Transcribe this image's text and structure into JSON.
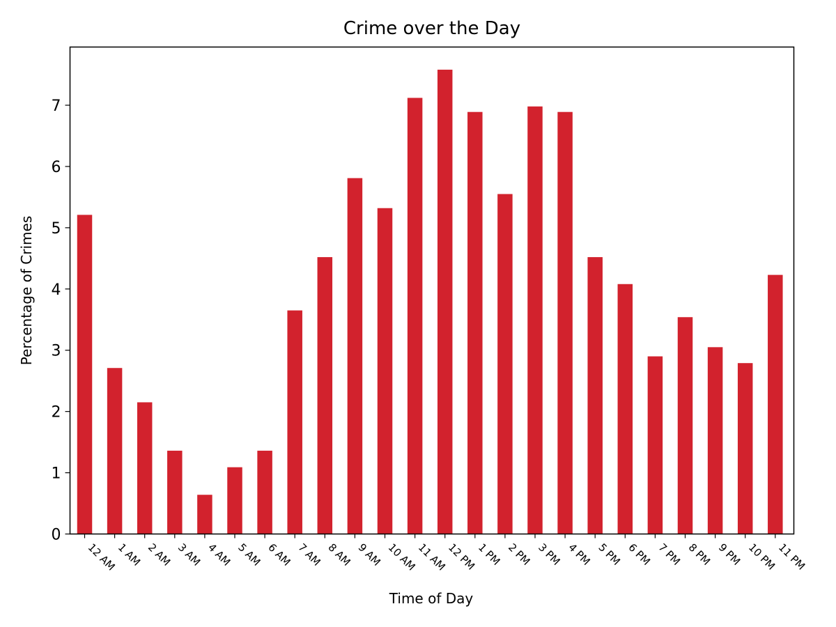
{
  "chart_data": {
    "type": "bar",
    "title": "Crime over the Day",
    "xlabel": "Time of Day",
    "ylabel": "Percentage of Crimes",
    "categories": [
      "12 AM",
      "1 AM",
      "2 AM",
      "3 AM",
      "4 AM",
      "5 AM",
      "6 AM",
      "7 AM",
      "8 AM",
      "9 AM",
      "10 AM",
      "11 AM",
      "12 PM",
      "1 PM",
      "2 PM",
      "3 PM",
      "4 PM",
      "5 PM",
      "6 PM",
      "7 PM",
      "8 PM",
      "9 PM",
      "10 PM",
      "11 PM"
    ],
    "values": [
      5.21,
      2.71,
      2.15,
      1.36,
      0.64,
      1.09,
      1.36,
      3.65,
      4.52,
      5.81,
      5.32,
      7.12,
      7.58,
      6.89,
      5.55,
      6.98,
      6.89,
      4.52,
      4.08,
      2.9,
      3.54,
      3.05,
      2.79,
      4.23
    ],
    "ylim": [
      0,
      7.95
    ],
    "yticks": [
      0,
      1,
      2,
      3,
      4,
      5,
      6,
      7
    ],
    "bar_color": "#d2222d",
    "grid": false,
    "legend": "none"
  }
}
